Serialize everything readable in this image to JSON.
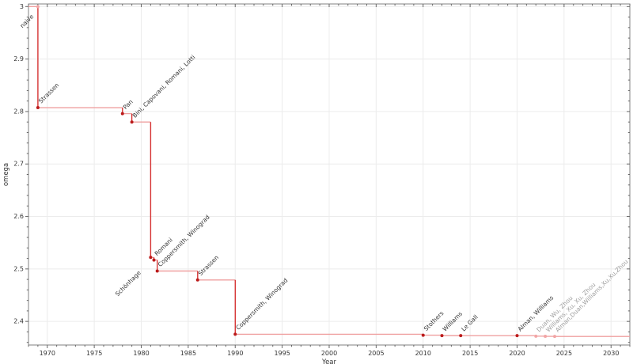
{
  "chart_data": {
    "type": "line",
    "subtype": "step-post",
    "title": "",
    "xlabel": "Year",
    "ylabel": "omega",
    "xlim": [
      1968,
      2032
    ],
    "ylim": [
      2.355,
      3.005
    ],
    "grid": true,
    "legend_position": "none",
    "x_major_ticks": [
      1970,
      1975,
      1980,
      1985,
      1990,
      1995,
      2000,
      2005,
      2010,
      2015,
      2020,
      2025,
      2030
    ],
    "x_tick_labels": [
      "1970",
      "1975",
      "1980",
      "1985",
      "1990",
      "1995",
      "2000",
      "2005",
      "2010",
      "2015",
      "2020",
      "2025",
      "2030"
    ],
    "x_minor_step": 1,
    "y_major_ticks": [
      2.4,
      2.5,
      2.6,
      2.7,
      2.8,
      2.9,
      3.0
    ],
    "y_tick_labels": [
      "2.4",
      "2.5",
      "2.6",
      "2.7",
      "2.8",
      "2.9",
      "3"
    ],
    "y_minor_step": 0.02,
    "points": [
      {
        "label": "naive",
        "year": 1969,
        "omega": 3.0,
        "marker": "light",
        "text": "dark",
        "label_side": "below",
        "label_offset": [
          -5,
          13
        ]
      },
      {
        "label": "Strassen",
        "year": 1969,
        "omega": 2.8074,
        "marker": "dark",
        "text": "dark",
        "label_side": "above"
      },
      {
        "label": "Pan",
        "year": 1978,
        "omega": 2.796,
        "marker": "dark",
        "text": "dark",
        "label_side": "above"
      },
      {
        "label": "Bini, Capovani, Romani, Lotti",
        "year": 1979,
        "omega": 2.78,
        "marker": "dark",
        "text": "dark",
        "label_side": "above"
      },
      {
        "label": "Schönhage",
        "year": 1981,
        "omega": 2.522,
        "marker": "dark",
        "text": "dark",
        "label_side": "below",
        "label_offset": [
          -12,
          20
        ]
      },
      {
        "label": "Romani",
        "year": 1981,
        "omega": 2.517,
        "marker": "dark",
        "text": "dark",
        "label_side": "above",
        "x_offset": 0.35
      },
      {
        "label": "Coppersmith, Winograd",
        "year": 1981,
        "omega": 2.496,
        "marker": "dark",
        "text": "dark",
        "label_side": "above",
        "x_offset": 0.7
      },
      {
        "label": "Strassen",
        "year": 1986,
        "omega": 2.479,
        "marker": "dark",
        "text": "dark",
        "label_side": "above"
      },
      {
        "label": "Coppersmith, Winograd",
        "year": 1990,
        "omega": 2.3755,
        "marker": "dark",
        "text": "dark",
        "label_side": "above"
      },
      {
        "label": "Stothers",
        "year": 2010,
        "omega": 2.3737,
        "marker": "dark",
        "text": "dark",
        "label_side": "above"
      },
      {
        "label": "Williams",
        "year": 2012,
        "omega": 2.3729,
        "marker": "dark",
        "text": "dark",
        "label_side": "above"
      },
      {
        "label": "Le Gall",
        "year": 2014,
        "omega": 2.3728639,
        "marker": "dark",
        "text": "dark",
        "label_side": "above"
      },
      {
        "label": "Alman, Williams",
        "year": 2020,
        "omega": 2.3728596,
        "marker": "dark",
        "text": "dark",
        "label_side": "above"
      },
      {
        "label": "Duan, Wu, Zhou",
        "year": 2022,
        "omega": 2.371866,
        "marker": "light",
        "text": "gray",
        "label_side": "above"
      },
      {
        "label": "Williams, Xu, Xu, Zhou",
        "year": 2023,
        "omega": 2.371552,
        "marker": "light",
        "text": "gray",
        "label_side": "above"
      },
      {
        "label": "Alman,Duan,Williams,Xu,Xu,Zhou",
        "year": 2024,
        "omega": 2.371339,
        "marker": "light",
        "text": "gray",
        "label_side": "above"
      }
    ],
    "colors": {
      "line_horizontal": "#efa0a0",
      "line_vertical": "#d63434",
      "marker_dark": "#bb1b1b",
      "marker_light": "#f2a5a5",
      "label_dark": "#333333",
      "label_gray": "#9e9e9e",
      "axis": "#808080",
      "tick": "#666666",
      "tick_label": "#333333",
      "grid": "#ececec",
      "background": "#ffffff"
    }
  }
}
